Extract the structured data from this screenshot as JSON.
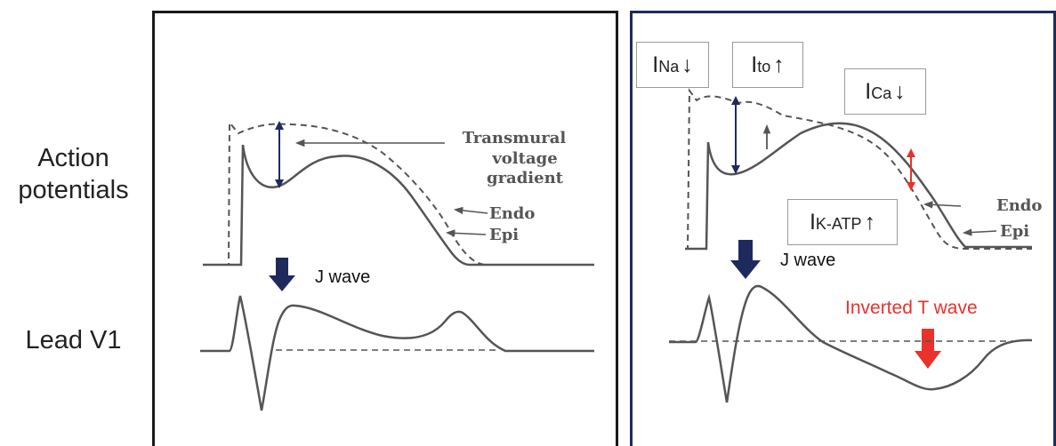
{
  "row_labels": {
    "action_line1": "Action",
    "action_line2": "potentials",
    "lead": "Lead V1"
  },
  "left": {
    "gradient_line1": "Transmural",
    "gradient_line2": "voltage",
    "gradient_line3": "gradient",
    "endo": "Endo",
    "epi": "Epi",
    "j_wave": "J wave"
  },
  "right": {
    "ina": {
      "main": "I",
      "sub": "Na",
      "arrow": "↓"
    },
    "ito": {
      "main": "I",
      "sub": "to",
      "arrow": "↑"
    },
    "ica": {
      "main": "I",
      "sub": "Ca",
      "arrow": "↓"
    },
    "ikatp": {
      "main": "I",
      "sub": "K-ATP",
      "arrow": "↑"
    },
    "endo": "Endo",
    "epi": "Epi",
    "j_wave": "J wave",
    "inverted_t": "Inverted T wave"
  },
  "colors": {
    "trace": "#555555",
    "navy": "#1f2a5c",
    "red": "#e8322b",
    "right_border": "#1e2a5e"
  }
}
